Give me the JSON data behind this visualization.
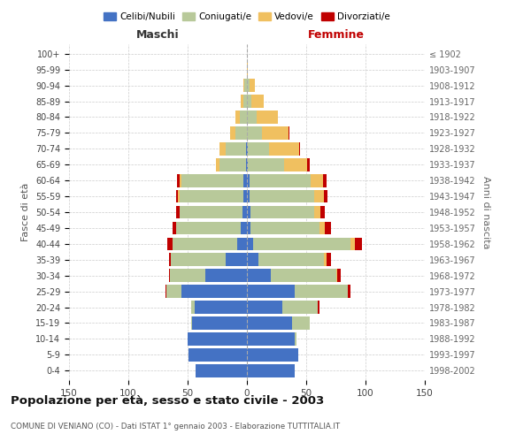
{
  "age_groups": [
    "0-4",
    "5-9",
    "10-14",
    "15-19",
    "20-24",
    "25-29",
    "30-34",
    "35-39",
    "40-44",
    "45-49",
    "50-54",
    "55-59",
    "60-64",
    "65-69",
    "70-74",
    "75-79",
    "80-84",
    "85-89",
    "90-94",
    "95-99",
    "100+"
  ],
  "birth_years": [
    "1998-2002",
    "1993-1997",
    "1988-1992",
    "1983-1987",
    "1978-1982",
    "1973-1977",
    "1968-1972",
    "1963-1967",
    "1958-1962",
    "1953-1957",
    "1948-1952",
    "1943-1947",
    "1938-1942",
    "1933-1937",
    "1928-1932",
    "1923-1927",
    "1918-1922",
    "1913-1917",
    "1908-1912",
    "1903-1907",
    "≤ 1902"
  ],
  "male": {
    "celibi": [
      43,
      49,
      50,
      46,
      44,
      55,
      35,
      18,
      8,
      5,
      4,
      3,
      3,
      1,
      1,
      0,
      0,
      0,
      0,
      0,
      0
    ],
    "coniugati": [
      0,
      0,
      0,
      1,
      3,
      13,
      30,
      46,
      55,
      55,
      53,
      54,
      52,
      22,
      17,
      10,
      6,
      3,
      2,
      0,
      0
    ],
    "vedovi": [
      0,
      0,
      0,
      0,
      0,
      0,
      0,
      0,
      0,
      0,
      0,
      1,
      2,
      3,
      5,
      4,
      4,
      2,
      1,
      0,
      0
    ],
    "divorziati": [
      0,
      0,
      0,
      0,
      0,
      1,
      1,
      2,
      4,
      3,
      3,
      2,
      2,
      0,
      0,
      0,
      0,
      0,
      0,
      0,
      0
    ]
  },
  "female": {
    "nubili": [
      40,
      43,
      40,
      38,
      30,
      40,
      20,
      10,
      5,
      3,
      3,
      2,
      2,
      1,
      1,
      0,
      0,
      0,
      0,
      0,
      0
    ],
    "coniugate": [
      0,
      0,
      2,
      15,
      30,
      45,
      55,
      55,
      82,
      58,
      54,
      55,
      52,
      30,
      18,
      13,
      8,
      4,
      2,
      0,
      0
    ],
    "vedove": [
      0,
      0,
      0,
      0,
      0,
      0,
      1,
      2,
      4,
      5,
      5,
      8,
      10,
      20,
      25,
      22,
      18,
      10,
      5,
      1,
      0
    ],
    "divorziate": [
      0,
      0,
      0,
      0,
      1,
      2,
      3,
      4,
      6,
      5,
      4,
      3,
      3,
      2,
      1,
      1,
      0,
      0,
      0,
      0,
      0
    ]
  },
  "colors": {
    "celibi": "#4472c4",
    "coniugati": "#b8c99a",
    "vedovi": "#f0c060",
    "divorziati": "#c00000"
  },
  "title": "Popolazione per età, sesso e stato civile - 2003",
  "subtitle": "COMUNE DI VENIANO (CO) - Dati ISTAT 1° gennaio 2003 - Elaborazione TUTTITALIA.IT",
  "legend_labels": [
    "Celibi/Nubili",
    "Coniugati/e",
    "Vedovi/e",
    "Divorziati/e"
  ],
  "xlabel_left": "Maschi",
  "xlabel_right": "Femmine",
  "ylabel_left": "Fasce di età",
  "ylabel_right": "Anni di nascita",
  "xlim": 150,
  "background_color": "#ffffff",
  "grid_color": "#cccccc"
}
